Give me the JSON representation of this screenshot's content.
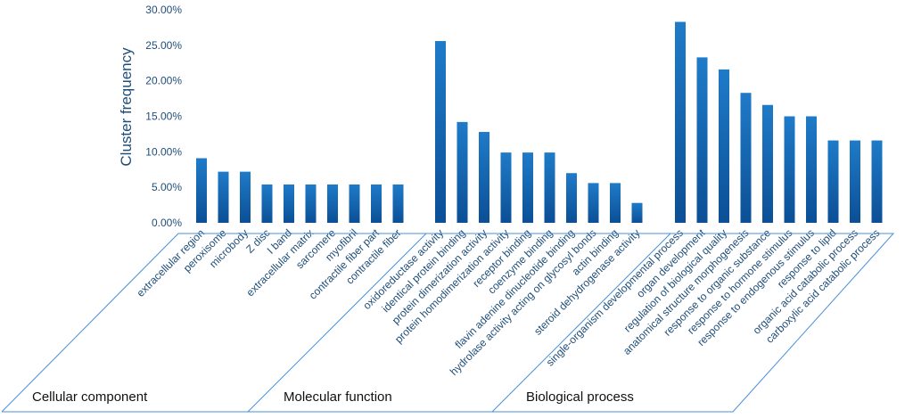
{
  "chart_data": {
    "type": "bar",
    "ylabel": "Cluster frequency",
    "ylim": [
      0,
      0.3
    ],
    "yticks": [
      "0.00%",
      "5.00%",
      "10.00%",
      "15.00%",
      "20.00%",
      "25.00%",
      "30.00%"
    ],
    "bar_color": "#1f7bc8",
    "bar_color_dark": "#0b4f96",
    "groups": [
      {
        "name": "Cellular component",
        "categories": [
          "extracellular region",
          "peroxisome",
          "microbody",
          "Z disc",
          "I band",
          "extracellular matrix",
          "sarcomere",
          "myofibril",
          "contractile fiber part",
          "contractile fiber"
        ],
        "values": [
          0.091,
          0.072,
          0.072,
          0.054,
          0.054,
          0.054,
          0.054,
          0.054,
          0.054,
          0.054
        ]
      },
      {
        "name": "Molecular function",
        "categories": [
          "oxidoreductase activity",
          "identical protein binding",
          "protein dimerization activity",
          "protein homodimerization activity",
          "receptor binding",
          "coenzyme binding",
          "flavin adenine dinucleotide binding",
          "hydrolase activity acting on glycosyl bonds",
          "actin binding",
          "steroid dehydrogenase activity"
        ],
        "values": [
          0.256,
          0.142,
          0.128,
          0.099,
          0.099,
          0.099,
          0.07,
          0.056,
          0.056,
          0.028
        ]
      },
      {
        "name": "Biological process",
        "categories": [
          "single-organism developmental process",
          "organ development",
          "regulation of biological quality",
          "anatomical structure morphogenesis",
          "response to organic substance",
          "response to hormone stimulus",
          "response to endogenous stimulus",
          "response to lipid",
          "organic acid catabolic process",
          "carboxylic acid catabolic process"
        ],
        "values": [
          0.283,
          0.233,
          0.216,
          0.183,
          0.166,
          0.15,
          0.15,
          0.116,
          0.116,
          0.116
        ]
      }
    ]
  }
}
